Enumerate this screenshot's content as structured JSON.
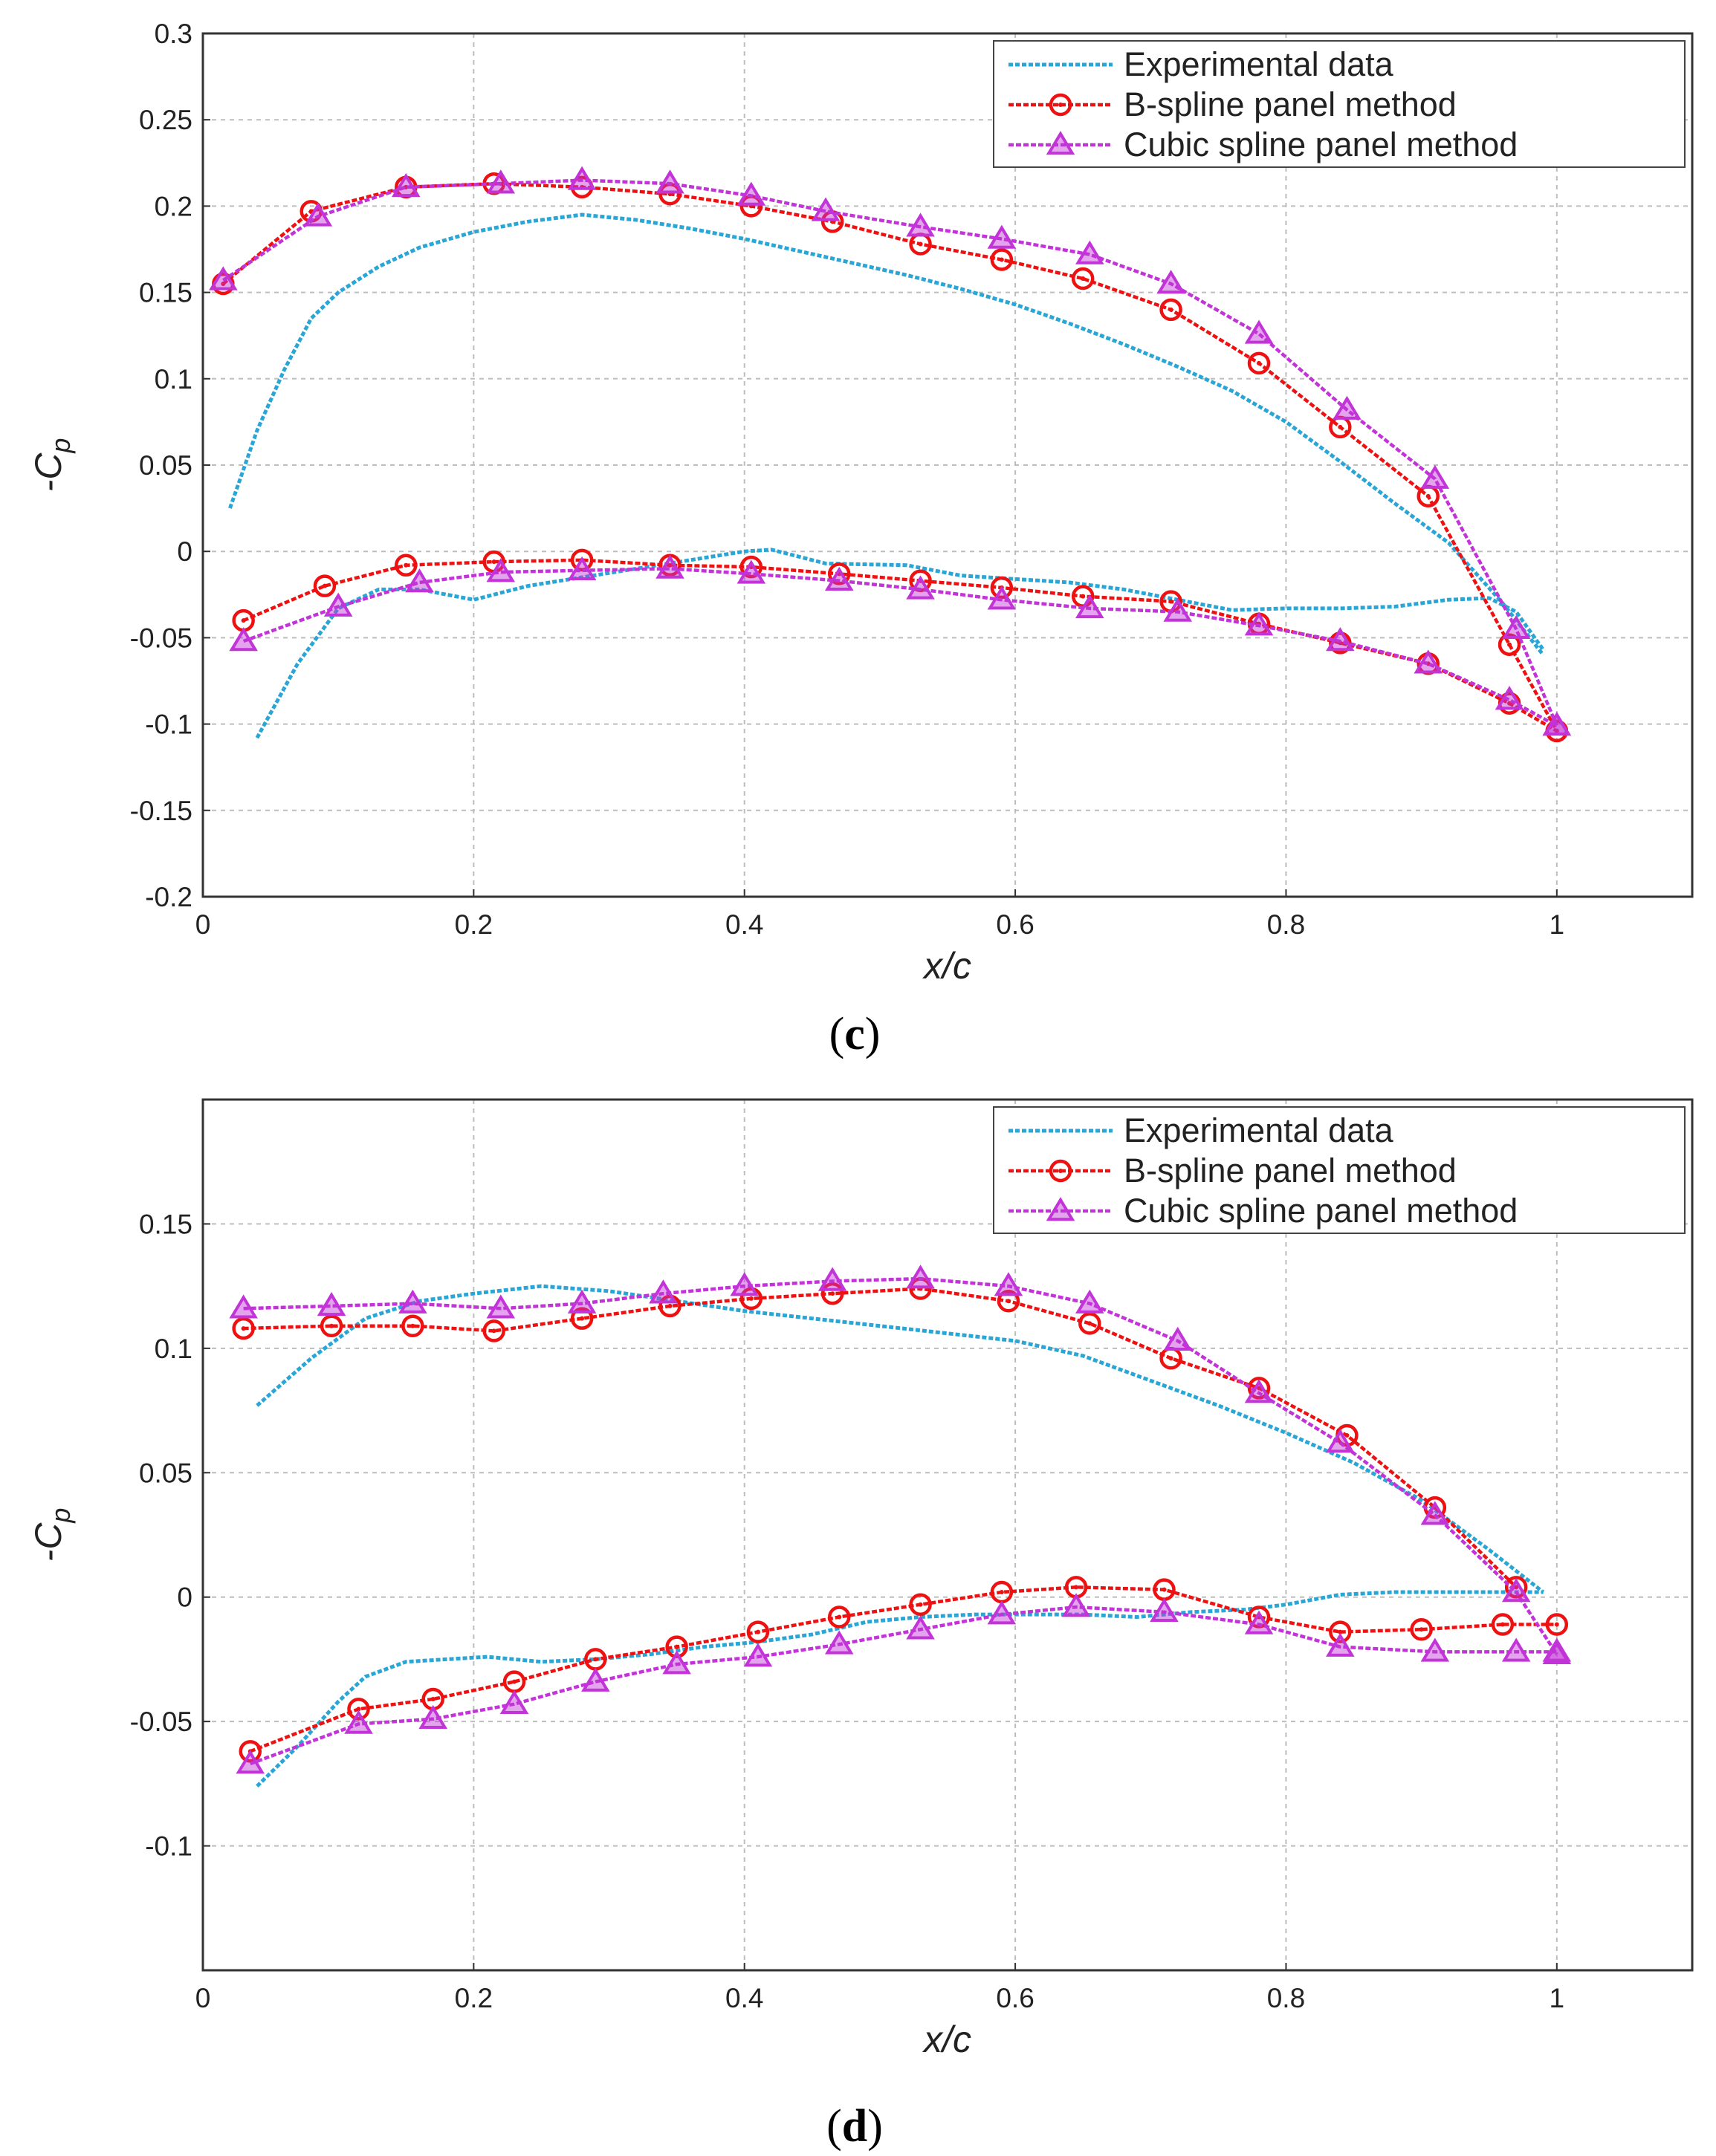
{
  "colors": {
    "experimental": "#2aa6d6",
    "bspline": "#ee1111",
    "cubic": "#c233d8",
    "grid": "#bdbdbd",
    "axis": "#333333"
  },
  "chart_data": [
    {
      "type": "line",
      "panel_label": "(c)",
      "panel_letter": "c",
      "xlabel": "x/c",
      "ylabel": "-Cp",
      "ylabel_main": "-C",
      "ylabel_sub": "p",
      "xlim": [
        0,
        1.1
      ],
      "ylim": [
        -0.2,
        0.3
      ],
      "xticks": [
        0,
        0.2,
        0.4,
        0.6,
        0.8,
        1
      ],
      "xtick_labels": [
        "0",
        "0.2",
        "0.4",
        "0.6",
        "0.8",
        "1"
      ],
      "yticks": [
        -0.2,
        -0.15,
        -0.1,
        -0.05,
        0,
        0.05,
        0.1,
        0.15,
        0.2,
        0.25,
        0.3
      ],
      "ytick_labels": [
        "-0.2",
        "-0.15",
        "-0.1",
        "-0.05",
        "0",
        "0.05",
        "0.1",
        "0.15",
        "0.2",
        "0.25",
        "0.3"
      ],
      "grid": true,
      "legend_position": "top-right",
      "legend": [
        "Experimental data",
        "B-spline panel method",
        "Cubic spline panel method"
      ],
      "series": [
        {
          "name": "Experimental data",
          "marker": "none",
          "x": [
            0.02,
            0.04,
            0.06,
            0.08,
            0.1,
            0.13,
            0.16,
            0.2,
            0.24,
            0.28,
            0.32,
            0.36,
            0.4,
            0.44,
            0.48,
            0.52,
            0.56,
            0.6,
            0.64,
            0.68,
            0.72,
            0.76,
            0.8,
            0.84,
            0.88,
            0.92,
            0.96,
            0.99
          ],
          "y": [
            0.025,
            0.07,
            0.105,
            0.135,
            0.15,
            0.165,
            0.176,
            0.185,
            0.191,
            0.195,
            0.192,
            0.187,
            0.181,
            0.174,
            0.167,
            0.16,
            0.152,
            0.143,
            0.132,
            0.12,
            0.107,
            0.093,
            0.075,
            0.052,
            0.028,
            0.005,
            -0.03,
            -0.06
          ]
        },
        {
          "name": "Experimental data (lower)",
          "marker": "none",
          "x": [
            0.04,
            0.07,
            0.1,
            0.13,
            0.16,
            0.2,
            0.24,
            0.28,
            0.32,
            0.36,
            0.4,
            0.42,
            0.46,
            0.52,
            0.56,
            0.6,
            0.64,
            0.68,
            0.72,
            0.76,
            0.8,
            0.84,
            0.88,
            0.92,
            0.95,
            0.97,
            0.99
          ],
          "y": [
            -0.108,
            -0.065,
            -0.033,
            -0.022,
            -0.022,
            -0.028,
            -0.02,
            -0.015,
            -0.01,
            -0.005,
            0,
            0.001,
            -0.007,
            -0.008,
            -0.014,
            -0.016,
            -0.018,
            -0.022,
            -0.028,
            -0.034,
            -0.033,
            -0.033,
            -0.032,
            -0.028,
            -0.027,
            -0.035,
            -0.057
          ]
        },
        {
          "name": "B-spline panel method",
          "marker": "circle",
          "x": [
            0.015,
            0.08,
            0.15,
            0.215,
            0.28,
            0.345,
            0.405,
            0.465,
            0.53,
            0.59,
            0.65,
            0.715,
            0.78,
            0.84,
            0.905,
            0.965,
            1.0
          ],
          "y": [
            0.155,
            0.197,
            0.211,
            0.213,
            0.211,
            0.207,
            0.2,
            0.191,
            0.178,
            0.169,
            0.158,
            0.14,
            0.109,
            0.072,
            0.032,
            -0.054,
            -0.104
          ]
        },
        {
          "name": "B-spline panel method (lower)",
          "marker": "circle",
          "x": [
            0.03,
            0.09,
            0.15,
            0.215,
            0.28,
            0.345,
            0.405,
            0.47,
            0.53,
            0.59,
            0.65,
            0.715,
            0.78,
            0.84,
            0.905,
            0.965,
            1.0
          ],
          "y": [
            -0.04,
            -0.02,
            -0.008,
            -0.006,
            -0.005,
            -0.008,
            -0.009,
            -0.013,
            -0.017,
            -0.021,
            -0.026,
            -0.029,
            -0.042,
            -0.053,
            -0.065,
            -0.088,
            -0.104
          ]
        },
        {
          "name": "Cubic spline panel method",
          "marker": "triangle",
          "x": [
            0.015,
            0.085,
            0.15,
            0.22,
            0.28,
            0.345,
            0.405,
            0.46,
            0.53,
            0.59,
            0.655,
            0.715,
            0.78,
            0.845,
            0.91,
            0.97,
            1.0
          ],
          "y": [
            0.157,
            0.194,
            0.211,
            0.213,
            0.215,
            0.213,
            0.206,
            0.197,
            0.188,
            0.181,
            0.172,
            0.155,
            0.126,
            0.082,
            0.042,
            -0.045,
            -0.101
          ]
        },
        {
          "name": "Cubic spline panel method (lower)",
          "marker": "triangle",
          "x": [
            0.03,
            0.1,
            0.16,
            0.22,
            0.28,
            0.345,
            0.405,
            0.47,
            0.53,
            0.59,
            0.655,
            0.72,
            0.78,
            0.84,
            0.905,
            0.965,
            1.0
          ],
          "y": [
            -0.052,
            -0.032,
            -0.018,
            -0.012,
            -0.011,
            -0.01,
            -0.013,
            -0.017,
            -0.022,
            -0.028,
            -0.033,
            -0.035,
            -0.043,
            -0.052,
            -0.065,
            -0.086,
            -0.101
          ]
        }
      ]
    },
    {
      "type": "line",
      "panel_label": "(d)",
      "panel_letter": "d",
      "xlabel": "x/c",
      "ylabel": "-Cp",
      "ylabel_main": "-C",
      "ylabel_sub": "p",
      "xlim": [
        0,
        1.1
      ],
      "ylim": [
        -0.15,
        0.2
      ],
      "xticks": [
        0,
        0.2,
        0.4,
        0.6,
        0.8,
        1
      ],
      "xtick_labels": [
        "0",
        "0.2",
        "0.4",
        "0.6",
        "0.8",
        "1"
      ],
      "yticks": [
        -0.1,
        -0.05,
        0,
        0.05,
        0.1,
        0.15
      ],
      "ytick_labels": [
        "-0.1",
        "-0.05",
        "0",
        "0.05",
        "0.1",
        "0.15"
      ],
      "grid": true,
      "legend_position": "top-right",
      "legend": [
        "Experimental data",
        "B-spline panel method",
        "Cubic spline panel method"
      ],
      "series": [
        {
          "name": "Experimental data",
          "marker": "none",
          "x": [
            0.04,
            0.08,
            0.12,
            0.16,
            0.2,
            0.25,
            0.3,
            0.35,
            0.4,
            0.45,
            0.5,
            0.55,
            0.6,
            0.65,
            0.7,
            0.75,
            0.8,
            0.85,
            0.9,
            0.95,
            0.99
          ],
          "y": [
            0.077,
            0.096,
            0.112,
            0.119,
            0.122,
            0.125,
            0.123,
            0.119,
            0.115,
            0.112,
            0.109,
            0.106,
            0.103,
            0.097,
            0.087,
            0.077,
            0.066,
            0.054,
            0.039,
            0.019,
            0.002
          ]
        },
        {
          "name": "Experimental data (lower)",
          "marker": "none",
          "x": [
            0.04,
            0.07,
            0.1,
            0.12,
            0.15,
            0.18,
            0.21,
            0.25,
            0.29,
            0.33,
            0.37,
            0.41,
            0.45,
            0.49,
            0.53,
            0.57,
            0.61,
            0.65,
            0.69,
            0.73,
            0.77,
            0.8,
            0.84,
            0.88,
            0.92,
            0.96,
            0.99
          ],
          "y": [
            -0.076,
            -0.06,
            -0.042,
            -0.032,
            -0.026,
            -0.025,
            -0.024,
            -0.026,
            -0.025,
            -0.023,
            -0.02,
            -0.018,
            -0.015,
            -0.01,
            -0.008,
            -0.007,
            -0.007,
            -0.007,
            -0.008,
            -0.006,
            -0.005,
            -0.003,
            0.001,
            0.002,
            0.002,
            0.002,
            0.002
          ]
        },
        {
          "name": "B-spline panel method",
          "marker": "circle",
          "x": [
            0.03,
            0.095,
            0.155,
            0.215,
            0.28,
            0.345,
            0.405,
            0.465,
            0.53,
            0.595,
            0.655,
            0.715,
            0.78,
            0.845,
            0.91,
            0.97
          ],
          "y": [
            0.108,
            0.109,
            0.109,
            0.107,
            0.112,
            0.117,
            0.12,
            0.122,
            0.124,
            0.119,
            0.11,
            0.096,
            0.084,
            0.065,
            0.036,
            0.004
          ]
        },
        {
          "name": "B-spline panel method (lower)",
          "marker": "circle",
          "x": [
            0.035,
            0.115,
            0.17,
            0.23,
            0.29,
            0.35,
            0.41,
            0.47,
            0.53,
            0.59,
            0.645,
            0.71,
            0.78,
            0.84,
            0.9,
            0.96,
            1.0
          ],
          "y": [
            -0.062,
            -0.045,
            -0.041,
            -0.034,
            -0.025,
            -0.02,
            -0.014,
            -0.008,
            -0.003,
            0.002,
            0.004,
            0.003,
            -0.008,
            -0.014,
            -0.013,
            -0.011,
            -0.011
          ]
        },
        {
          "name": "Cubic spline panel method",
          "marker": "triangle",
          "x": [
            0.03,
            0.095,
            0.155,
            0.22,
            0.28,
            0.34,
            0.4,
            0.465,
            0.53,
            0.595,
            0.655,
            0.72,
            0.78,
            0.84,
            0.91,
            0.97,
            1.0
          ],
          "y": [
            0.116,
            0.117,
            0.118,
            0.116,
            0.118,
            0.122,
            0.125,
            0.127,
            0.128,
            0.125,
            0.118,
            0.103,
            0.082,
            0.062,
            0.033,
            0.002,
            -0.023
          ]
        },
        {
          "name": "Cubic spline panel method (lower)",
          "marker": "triangle",
          "x": [
            0.035,
            0.115,
            0.17,
            0.23,
            0.29,
            0.35,
            0.41,
            0.47,
            0.53,
            0.59,
            0.645,
            0.71,
            0.78,
            0.84,
            0.91,
            0.97,
            1.0
          ],
          "y": [
            -0.067,
            -0.051,
            -0.049,
            -0.043,
            -0.034,
            -0.027,
            -0.024,
            -0.019,
            -0.013,
            -0.007,
            -0.004,
            -0.006,
            -0.011,
            -0.02,
            -0.022,
            -0.022,
            -0.022
          ]
        }
      ]
    }
  ]
}
